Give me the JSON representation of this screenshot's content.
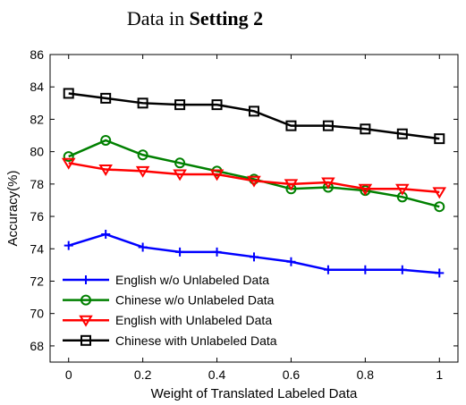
{
  "chart_data": {
    "type": "line",
    "title_plain": "Data in ",
    "title_bold": "Setting 2",
    "xlabel": "Weight of Translated Labeled Data",
    "ylabel": "Accuracy(%)",
    "xlim": [
      -0.05,
      1.05
    ],
    "ylim": [
      67,
      86
    ],
    "xticks": [
      0,
      0.2,
      0.4,
      0.6,
      0.8,
      1
    ],
    "yticks": [
      68,
      70,
      72,
      74,
      76,
      78,
      80,
      82,
      84,
      86
    ],
    "x": [
      0,
      0.1,
      0.2,
      0.3,
      0.4,
      0.5,
      0.6,
      0.7,
      0.8,
      0.9,
      1.0
    ],
    "legend_position": "bottom-left",
    "series": [
      {
        "name": "English w/o Unlabeled Data",
        "color": "#0000ff",
        "marker": "plus",
        "values": [
          74.2,
          74.9,
          74.1,
          73.8,
          73.8,
          73.5,
          73.2,
          72.7,
          72.7,
          72.7,
          72.5
        ]
      },
      {
        "name": "Chinese w/o Unlabeled Data",
        "color": "#008000",
        "marker": "circle",
        "values": [
          79.7,
          80.7,
          79.8,
          79.3,
          78.8,
          78.3,
          77.7,
          77.8,
          77.6,
          77.2,
          76.6
        ]
      },
      {
        "name": "English with Unlabeled Data",
        "color": "#ff0000",
        "marker": "triangle-down",
        "values": [
          79.3,
          78.9,
          78.8,
          78.6,
          78.6,
          78.2,
          78.0,
          78.1,
          77.7,
          77.7,
          77.5
        ]
      },
      {
        "name": "Chinese with Unlabeled Data",
        "color": "#000000",
        "marker": "square",
        "values": [
          83.6,
          83.3,
          83.0,
          82.9,
          82.9,
          82.5,
          81.6,
          81.6,
          81.4,
          81.1,
          80.8
        ]
      }
    ]
  }
}
